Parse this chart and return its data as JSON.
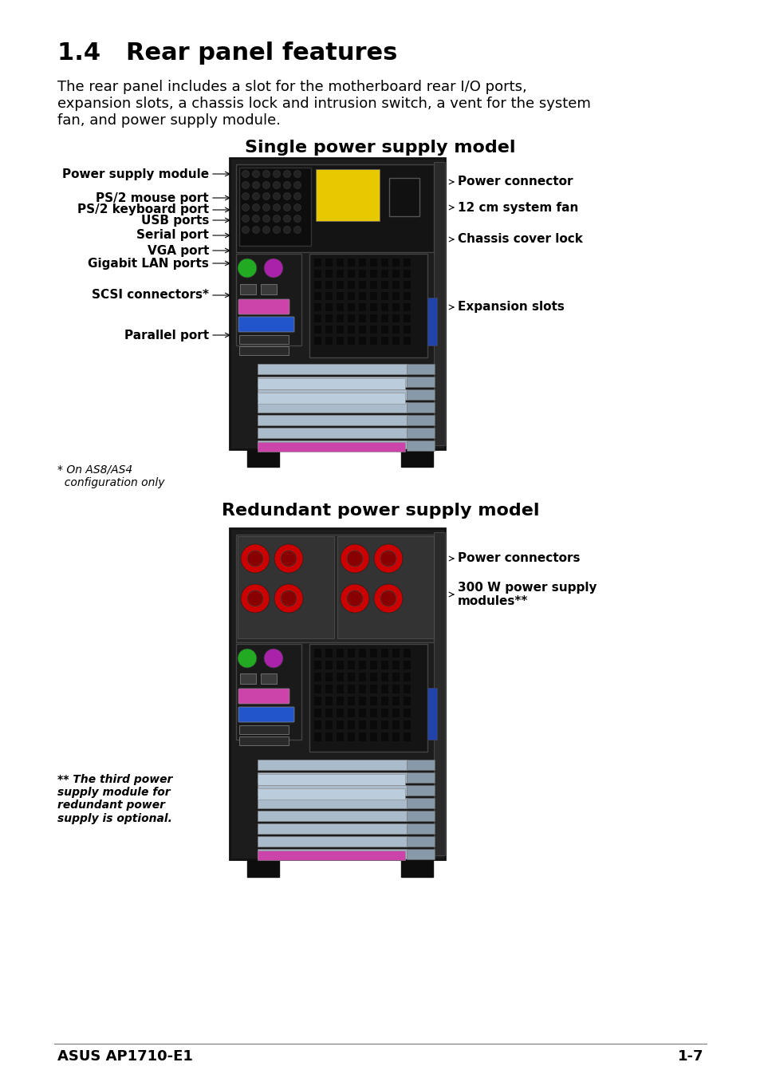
{
  "bg_color": "#ffffff",
  "title": "1.4   Rear panel features",
  "title_fontsize": 22,
  "body_text": "The rear panel includes a slot for the motherboard rear I/O ports,\nexpansion slots, a chassis lock and intrusion switch, a vent for the system\nfan, and power supply module.",
  "body_fontsize": 13,
  "section1_title": "Single power supply model",
  "section2_title": "Redundant power supply model",
  "section_title_fontsize": 16,
  "footer_left": "ASUS AP1710-E1",
  "footer_right": "1-7",
  "footer_fontsize": 13,
  "label_fontsize": 11,
  "footnote_single": "* On AS8/AS4\n  configuration only",
  "footnote_redundant": "** The third power\nsupply module for\nredundant power\nsupply is optional."
}
